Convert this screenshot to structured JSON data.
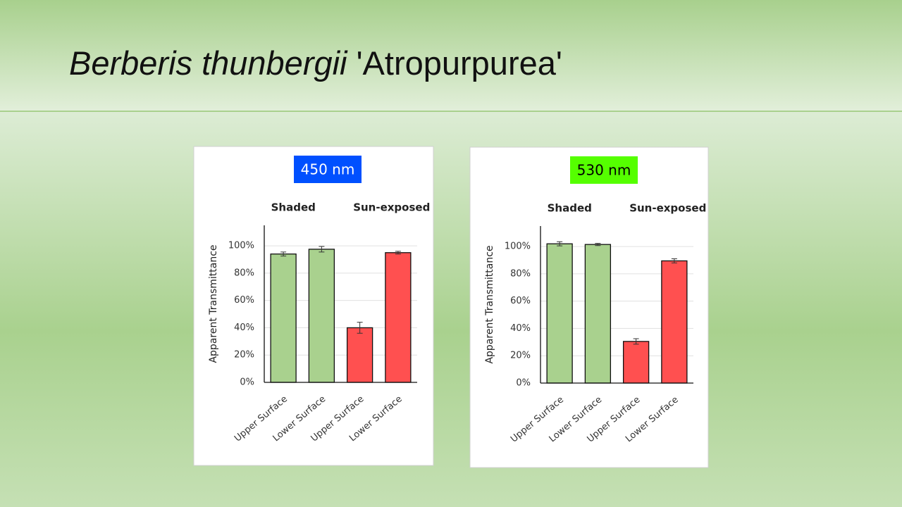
{
  "slide": {
    "title_italic": "Berberis thunbergii",
    "title_rest": "'Atropurpurea'"
  },
  "chart_data": [
    {
      "type": "bar",
      "title": "450 nm",
      "title_background": "#0050ff",
      "title_color": "#ffffff",
      "annotations": [
        "Shaded",
        "Sun-exposed"
      ],
      "y_label": "Apparent Transmittance",
      "categories": [
        "Upper Surface",
        "Lower Surface",
        "Upper Surface",
        "Lower Surface"
      ],
      "values": [
        94,
        97.5,
        40,
        95
      ],
      "errors": [
        1.5,
        2,
        4,
        1
      ],
      "colors": [
        "#a9d18e",
        "#a9d18e",
        "#ff5050",
        "#ff5050"
      ],
      "ylim": [
        0,
        115
      ],
      "yticks": [
        {
          "value": 0,
          "label": "0%"
        },
        {
          "value": 20,
          "label": "20%"
        },
        {
          "value": 40,
          "label": "40%"
        },
        {
          "value": 60,
          "label": "60%"
        },
        {
          "value": 80,
          "label": "80%"
        },
        {
          "value": 100,
          "label": "100%"
        }
      ],
      "grid": true
    },
    {
      "type": "bar",
      "title": "530 nm",
      "title_background": "#55ff00",
      "title_color": "#000000",
      "annotations": [
        "Shaded",
        "Sun-exposed"
      ],
      "y_label": "Apparent Transmittance",
      "categories": [
        "Upper Surface",
        "Lower Surface",
        "Upper Surface",
        "Lower Surface"
      ],
      "values": [
        102,
        101.5,
        30.5,
        89.5
      ],
      "errors": [
        1.5,
        0.8,
        2,
        1.5
      ],
      "colors": [
        "#a9d18e",
        "#a9d18e",
        "#ff5050",
        "#ff5050"
      ],
      "ylim": [
        0,
        115
      ],
      "yticks": [
        {
          "value": 0,
          "label": "0%"
        },
        {
          "value": 20,
          "label": "20%"
        },
        {
          "value": 40,
          "label": "40%"
        },
        {
          "value": 60,
          "label": "60%"
        },
        {
          "value": 80,
          "label": "80%"
        },
        {
          "value": 100,
          "label": "100%"
        }
      ],
      "grid": true
    }
  ]
}
